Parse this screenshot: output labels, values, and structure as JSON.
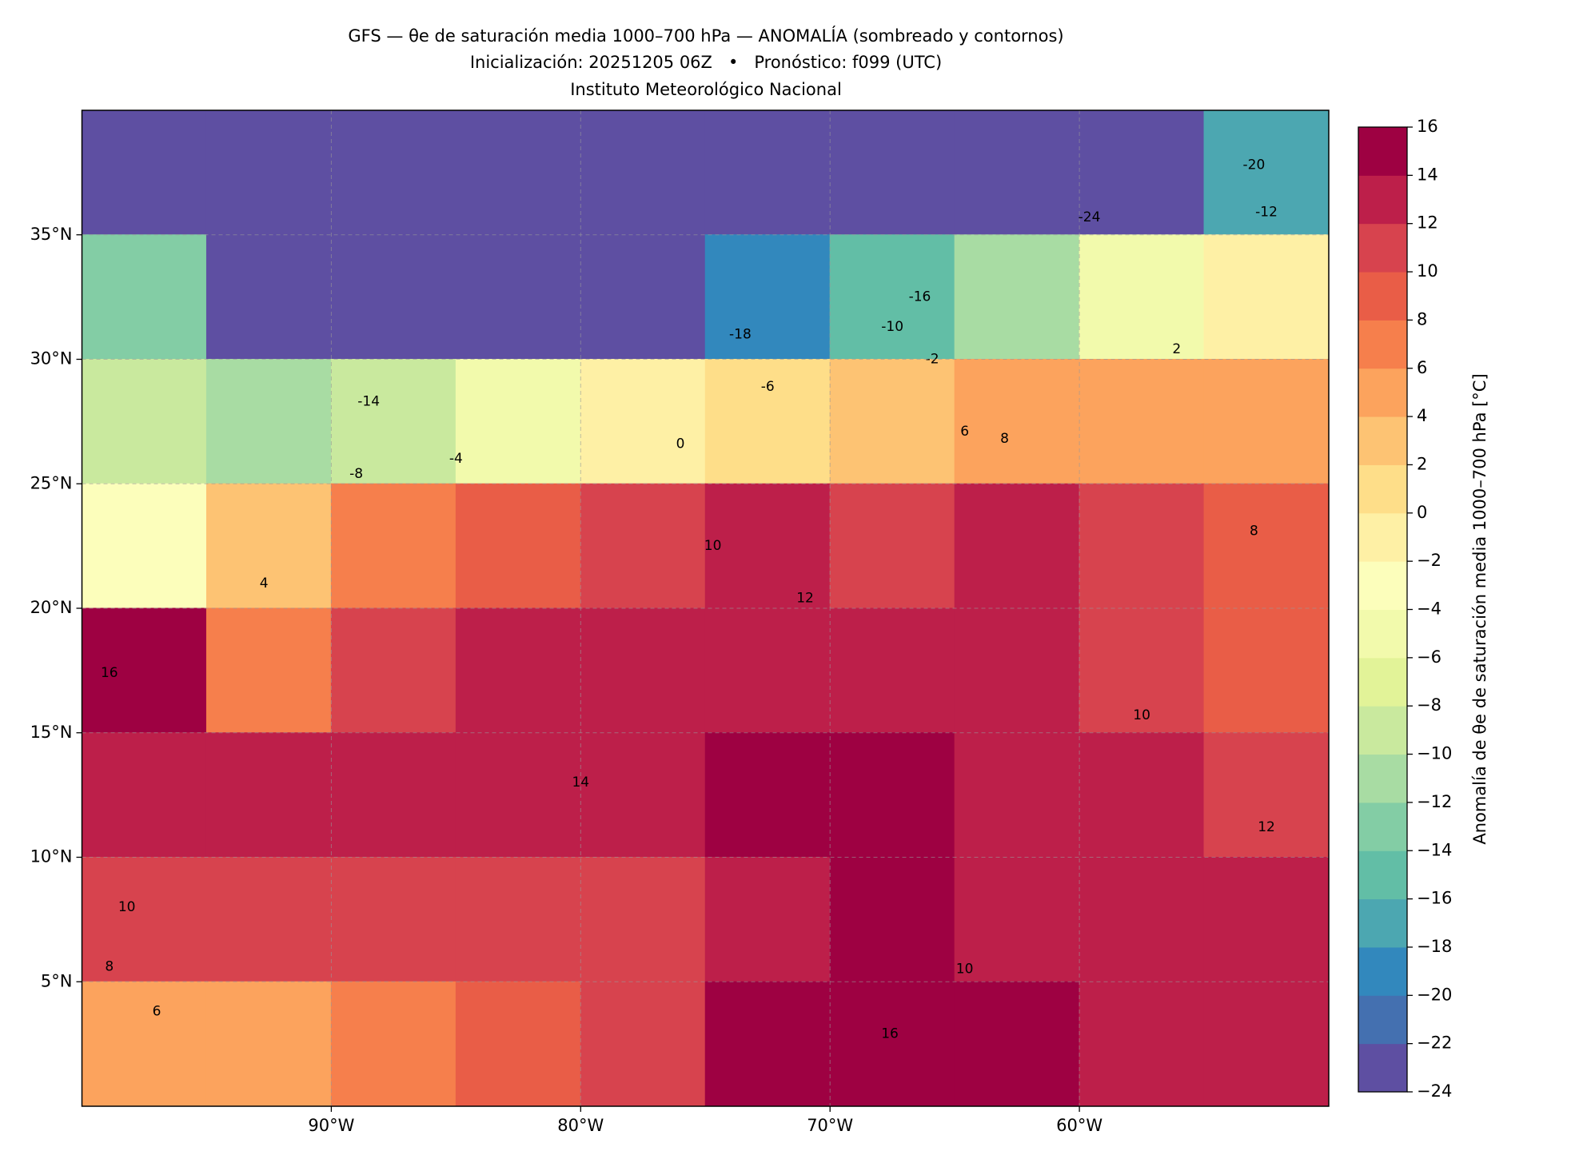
{
  "chart_data": {
    "type": "map",
    "title": [
      "GFS — θe de saturación media 1000–700 hPa — ANOMALÍA (sombreado y contornos)",
      "Inicialización: 20251205 06Z   •   Pronóstico: f099 (UTC)",
      "Instituto Meteorológico Nacional"
    ],
    "xlim": [
      -100,
      -50
    ],
    "ylim": [
      0,
      40
    ],
    "xticks": [
      {
        "value": -90,
        "label": "90°W"
      },
      {
        "value": -80,
        "label": "80°W"
      },
      {
        "value": -70,
        "label": "70°W"
      },
      {
        "value": -60,
        "label": "60°W"
      }
    ],
    "yticks": [
      {
        "value": 5,
        "label": "5°N"
      },
      {
        "value": 10,
        "label": "10°N"
      },
      {
        "value": 15,
        "label": "15°N"
      },
      {
        "value": 20,
        "label": "20°N"
      },
      {
        "value": 25,
        "label": "25°N"
      },
      {
        "value": 30,
        "label": "30°N"
      },
      {
        "value": 35,
        "label": "35°N"
      }
    ],
    "grid": true,
    "field": {
      "lon_edges": [
        -100,
        -95,
        -90,
        -85,
        -80,
        -75,
        -70,
        -65,
        -60,
        -55,
        -50
      ],
      "lat_edges": [
        40,
        35,
        30,
        25,
        20,
        15,
        10,
        5,
        0
      ],
      "values": [
        [
          -24,
          -24,
          -24,
          -24,
          -24,
          -24,
          -24,
          -24,
          -24,
          -18
        ],
        [
          -14,
          -24,
          -24,
          -24,
          -24,
          -20,
          -16,
          -12,
          -6,
          -2
        ],
        [
          -10,
          -12,
          -10,
          -6,
          -2,
          0,
          2,
          4,
          4,
          4
        ],
        [
          -4,
          2,
          6,
          8,
          10,
          12,
          10,
          12,
          10,
          8
        ],
        [
          14,
          6,
          10,
          12,
          12,
          12,
          12,
          12,
          10,
          8
        ],
        [
          12,
          12,
          12,
          12,
          12,
          14,
          14,
          12,
          12,
          10
        ],
        [
          10,
          10,
          10,
          10,
          10,
          12,
          14,
          12,
          12,
          12
        ],
        [
          4,
          4,
          6,
          8,
          10,
          14,
          14,
          14,
          12,
          12
        ]
      ]
    },
    "contour_labels": [
      {
        "lon": -76,
        "lat": 26.6,
        "value": 0
      },
      {
        "lon": -56.1,
        "lat": 30.4,
        "value": 2
      },
      {
        "lon": -64.6,
        "lat": 27.1,
        "value": 6
      },
      {
        "lon": -63,
        "lat": 26.8,
        "value": 8
      },
      {
        "lon": -65.9,
        "lat": 30,
        "value": -2
      },
      {
        "lon": -72.5,
        "lat": 28.9,
        "value": -6
      },
      {
        "lon": -67.5,
        "lat": 31.3,
        "value": -10
      },
      {
        "lon": -88.5,
        "lat": 28.3,
        "value": -14
      },
      {
        "lon": -85,
        "lat": 26,
        "value": -4
      },
      {
        "lon": -89,
        "lat": 25.4,
        "value": -8
      },
      {
        "lon": -73.6,
        "lat": 31,
        "value": -18
      },
      {
        "lon": -66.4,
        "lat": 32.5,
        "value": -16
      },
      {
        "lon": -59.6,
        "lat": 35.7,
        "value": -24
      },
      {
        "lon": -52.5,
        "lat": 35.9,
        "value": -12
      },
      {
        "lon": -53,
        "lat": 37.8,
        "value": -20
      },
      {
        "lon": -92.7,
        "lat": 21,
        "value": 4
      },
      {
        "lon": -74.7,
        "lat": 22.5,
        "value": 10
      },
      {
        "lon": -71,
        "lat": 20.4,
        "value": 12
      },
      {
        "lon": -80,
        "lat": 13,
        "value": 14
      },
      {
        "lon": -98.9,
        "lat": 17.4,
        "value": 16
      },
      {
        "lon": -97,
        "lat": 3.8,
        "value": 6
      },
      {
        "lon": -98.2,
        "lat": 8,
        "value": 10
      },
      {
        "lon": -98.9,
        "lat": 5.6,
        "value": 8
      },
      {
        "lon": -67.6,
        "lat": 2.9,
        "value": 16
      },
      {
        "lon": -64.6,
        "lat": 5.5,
        "value": 10
      },
      {
        "lon": -52.5,
        "lat": 11.2,
        "value": 12
      },
      {
        "lon": -57.5,
        "lat": 15.7,
        "value": 10
      },
      {
        "lon": -53,
        "lat": 23.1,
        "value": 8
      }
    ],
    "colorbar": {
      "label": "Anomalía de θe de saturación media 1000–700 hPa [°C]",
      "ticks": [
        {
          "value": -24,
          "label": "−24"
        },
        {
          "value": -22,
          "label": "−22"
        },
        {
          "value": -20,
          "label": "−20"
        },
        {
          "value": -18,
          "label": "−18"
        },
        {
          "value": -16,
          "label": "−16"
        },
        {
          "value": -14,
          "label": "−14"
        },
        {
          "value": -12,
          "label": "−12"
        },
        {
          "value": -10,
          "label": "−10"
        },
        {
          "value": -8,
          "label": "−8"
        },
        {
          "value": -6,
          "label": "−6"
        },
        {
          "value": -4,
          "label": "−4"
        },
        {
          "value": -2,
          "label": "−2"
        },
        0,
        2,
        4,
        6,
        8,
        10,
        12,
        14,
        16
      ],
      "colors": [
        "#5e4fa2",
        "#4470b0",
        "#3288bd",
        "#4ca7b1",
        "#62bea6",
        "#83cda5",
        "#a8dca3",
        "#c9e99e",
        "#e2f398",
        "#f2faac",
        "#fcfebb",
        "#fef0a5",
        "#fede89",
        "#fdc373",
        "#fca35d",
        "#f67f4c",
        "#e95d47",
        "#d7434e",
        "#bd1f4a",
        "#9e0142"
      ]
    }
  }
}
